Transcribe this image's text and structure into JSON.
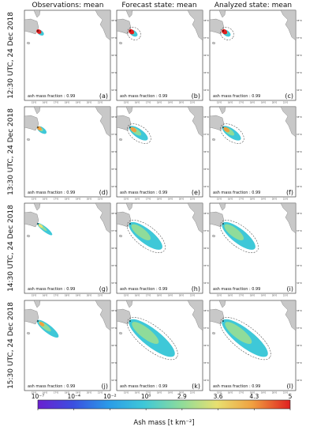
{
  "column_titles": [
    "Observations: mean",
    "Forecast state: mean",
    "Analyzed state: mean"
  ],
  "row_labels": [
    "12:30 UTC, 24 Dec 2018",
    "13:30 UTC, 24 Dec 2018",
    "14:30 UTC, 24 Dec 2018",
    "15:30 UTC, 24 Dec 2018"
  ],
  "panels": [
    {
      "label": "(a)",
      "annotation": "ash mass fraction : 0.99"
    },
    {
      "label": "(b)",
      "annotation": "ash mass fraction : 0.99"
    },
    {
      "label": "(c)",
      "annotation": "ash mass fraction : 0.99"
    },
    {
      "label": "(d)",
      "annotation": "ash mass fraction : 0.99"
    },
    {
      "label": "(e)",
      "annotation": "ash mass fraction : 0.99"
    },
    {
      "label": "(f)",
      "annotation": "ash mass fraction : 0.99"
    },
    {
      "label": "(g)",
      "annotation": "ash mass fraction : 0.99"
    },
    {
      "label": "(h)",
      "annotation": "ash mass fraction : 0.99"
    },
    {
      "label": "(i)",
      "annotation": "ash mass fraction : 0.99"
    },
    {
      "label": "(j)",
      "annotation": "ash mass fraction : 0.99"
    },
    {
      "label": "(k)",
      "annotation": "ash mass fraction : 0.99"
    },
    {
      "label": "(l)",
      "annotation": "ash mass fraction : 0.99"
    }
  ],
  "map_axes": {
    "lon_ticks": [
      "15°E",
      "16°E",
      "17°E",
      "18°E",
      "19°E",
      "20°E",
      "21°E"
    ],
    "lat_ticks": [
      "38°N",
      "37°N",
      "36°N",
      "35°N",
      "34°N"
    ]
  },
  "colorbar": {
    "ticks": [
      "10⁻⁷",
      "10⁻⁴",
      "10⁻²",
      "10⁰",
      "2.9",
      "3.6",
      "4.3",
      "5"
    ],
    "label": "Ash mass [t km⁻²]"
  }
}
